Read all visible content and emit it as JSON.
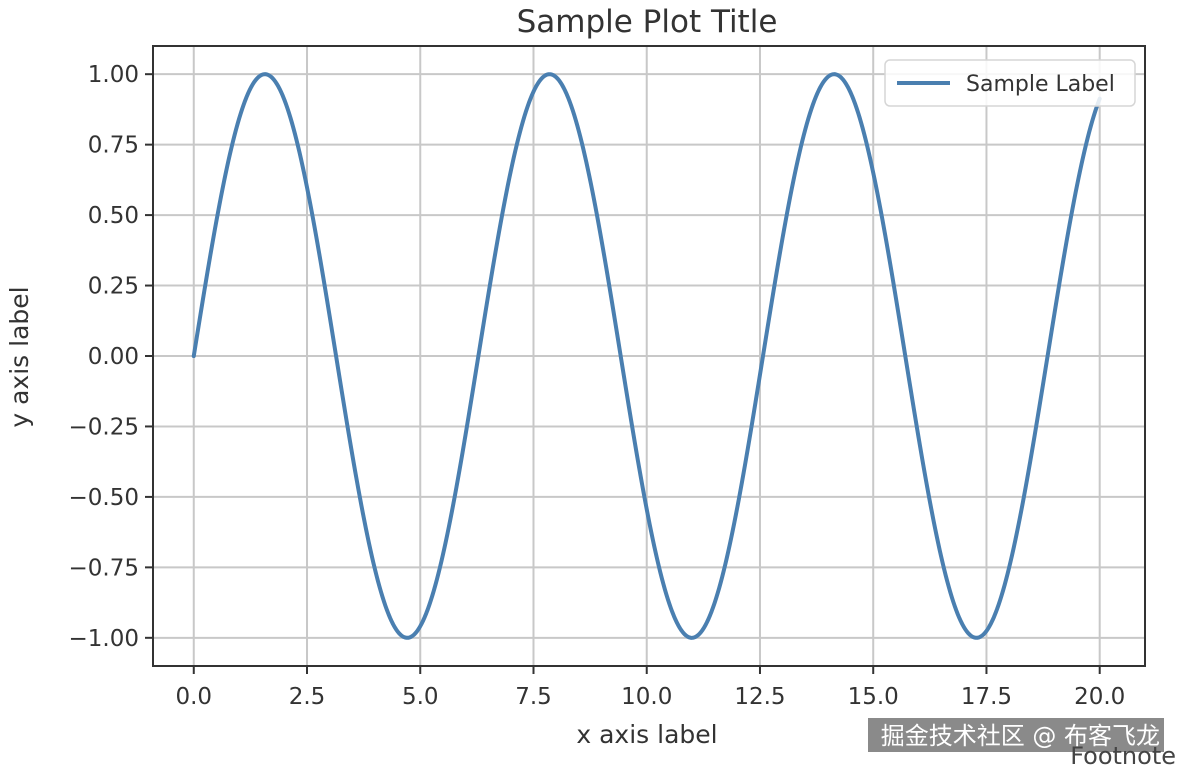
{
  "chart_data": {
    "type": "line",
    "title": "Sample Plot Title",
    "xlabel": "x axis label",
    "ylabel": "y axis label",
    "xlim": [
      -0.9,
      21.0
    ],
    "ylim": [
      -1.1,
      1.1
    ],
    "x_ticks": [
      0.0,
      2.5,
      5.0,
      7.5,
      10.0,
      12.5,
      15.0,
      17.5,
      20.0
    ],
    "x_tick_labels": [
      "0.0",
      "2.5",
      "5.0",
      "7.5",
      "10.0",
      "12.5",
      "15.0",
      "17.5",
      "20.0"
    ],
    "y_ticks": [
      1.0,
      0.75,
      0.5,
      0.25,
      0.0,
      -0.25,
      -0.5,
      -0.75,
      -1.0
    ],
    "y_tick_labels": [
      "1.00",
      "0.75",
      "0.50",
      "0.25",
      "0.00",
      "−0.25",
      "−0.50",
      "−0.75",
      "−1.00"
    ],
    "grid": true,
    "legend_position": "top-right",
    "series": [
      {
        "name": "Sample Label",
        "color": "#4a7fb0",
        "function": "sin(x)",
        "x_range": [
          0,
          20
        ],
        "sample_points": [
          [
            0.0,
            0.0
          ],
          [
            1.57,
            1.0
          ],
          [
            3.14,
            0.0
          ],
          [
            4.71,
            -1.0
          ],
          [
            6.28,
            0.0
          ],
          [
            7.85,
            1.0
          ],
          [
            9.42,
            0.0
          ],
          [
            11.0,
            -1.0
          ],
          [
            12.57,
            0.0
          ],
          [
            14.14,
            1.0
          ],
          [
            15.71,
            0.0
          ],
          [
            17.28,
            -1.0
          ],
          [
            18.85,
            0.0
          ],
          [
            20.0,
            0.91
          ]
        ]
      }
    ],
    "footnote": "Footnote"
  },
  "watermark": "掘金技术社区 @ 布客飞龙",
  "colors": {
    "line": "#4a7fb0",
    "grid": "#c8c8c8",
    "axes": "#333333",
    "background": "#ffffff"
  }
}
